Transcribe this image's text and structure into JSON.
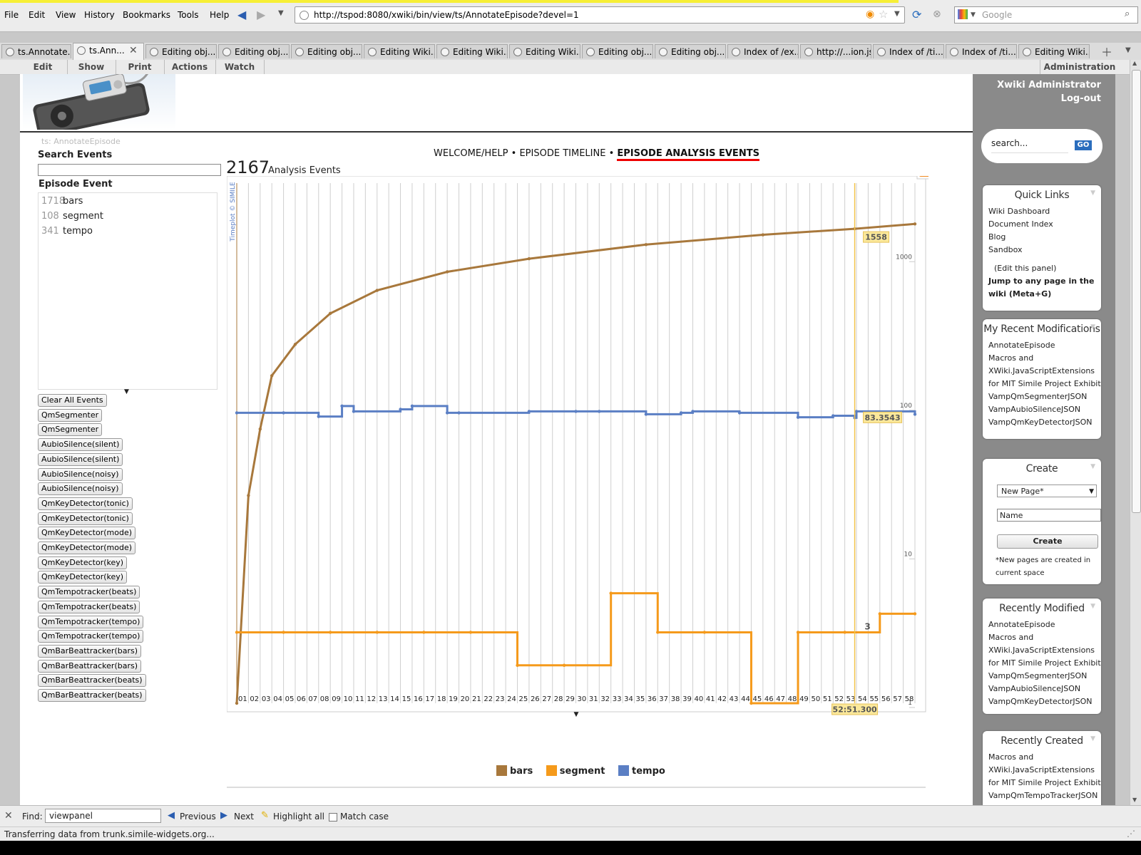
{
  "menubar": {
    "items": [
      "File",
      "Edit",
      "View",
      "History",
      "Bookmarks",
      "Tools",
      "Help"
    ],
    "url": "http://tspod:8080/xwiki/bin/view/ts/AnnotateEpisode?devel=1",
    "search_placeholder": "Google"
  },
  "tabs": [
    {
      "label": "ts.Annotate..."
    },
    {
      "label": "ts.Ann..."
    },
    {
      "label": "Editing obj..."
    },
    {
      "label": "Editing obj..."
    },
    {
      "label": "Editing obj..."
    },
    {
      "label": "Editing Wiki..."
    },
    {
      "label": "Editing Wiki..."
    },
    {
      "label": "Editing Wiki..."
    },
    {
      "label": "Editing obj..."
    },
    {
      "label": "Editing obj..."
    },
    {
      "label": "Index of /ex..."
    },
    {
      "label": "http://...ion.js"
    },
    {
      "label": "Index of /ti..."
    },
    {
      "label": "Index of /ti..."
    },
    {
      "label": "Editing Wiki..."
    }
  ],
  "xwiki_menu": {
    "items": [
      "Edit",
      "Show",
      "Print",
      "Actions",
      "Watch"
    ],
    "admin": "Administration"
  },
  "breadcrumb": "ts: AnnotateEpisode",
  "search_events": {
    "label": "Search Events",
    "value": ""
  },
  "episode_event": {
    "label": "Episode Event",
    "items": [
      {
        "count": "1718",
        "name": "bars"
      },
      {
        "count": "108",
        "name": "segment"
      },
      {
        "count": "341",
        "name": "tempo"
      }
    ]
  },
  "buttons": [
    "Clear All Events",
    "QmSegmenter",
    "QmSegmenter",
    "AubioSilence(silent)",
    "AubioSilence(silent)",
    "AubioSilence(noisy)",
    "AubioSilence(noisy)",
    "QmKeyDetector(tonic)",
    "QmKeyDetector(tonic)",
    "QmKeyDetector(mode)",
    "QmKeyDetector(mode)",
    "QmKeyDetector(key)",
    "QmKeyDetector(key)",
    "QmTempotracker(beats)",
    "QmTempotracker(beats)",
    "QmTempotracker(tempo)",
    "QmTempotracker(tempo)",
    "QmBarBeattracker(bars)",
    "QmBarBeattracker(bars)",
    "QmBarBeattracker(beats)",
    "QmBarBeattracker(beats)"
  ],
  "nav": {
    "welcome": "WELCOME/HELP",
    "timeline": "EPISODE TIMELINE",
    "analysis": "EPISODE ANALYSIS EVENTS",
    "sep": "•"
  },
  "summary": {
    "count": "2167",
    "label": "Analysis Events"
  },
  "plot": {
    "credit": "Timeplot © SIMILE",
    "hover_bars": "1558",
    "hover_tempo": "83.3543",
    "hover_segment": "3",
    "hover_time": "52:51.300",
    "colors": {
      "bars": "#a8783c",
      "segment": "#f59a1b",
      "tempo": "#5b7fc4"
    }
  },
  "chart_data": {
    "type": "line",
    "x_ticks": [
      "01",
      "02",
      "03",
      "04",
      "05",
      "06",
      "07",
      "08",
      "09",
      "10",
      "11",
      "12",
      "13",
      "14",
      "15",
      "16",
      "17",
      "18",
      "19",
      "20",
      "21",
      "22",
      "23",
      "24",
      "25",
      "26",
      "27",
      "28",
      "29",
      "30",
      "31",
      "32",
      "33",
      "34",
      "35",
      "36",
      "37",
      "38",
      "39",
      "40",
      "41",
      "42",
      "43",
      "44",
      "45",
      "46",
      "47",
      "48",
      "49",
      "50",
      "51",
      "52",
      "53",
      "54",
      "55",
      "56",
      "57",
      "58"
    ],
    "y_ticks": [
      "1000",
      "100",
      "10",
      "1"
    ],
    "yscale": "log",
    "series": [
      {
        "name": "bars",
        "x": [
          0,
          1,
          2,
          3,
          5,
          8,
          12,
          18,
          25,
          35,
          45,
          52.85,
          58
        ],
        "y": [
          1,
          25,
          70,
          160,
          260,
          420,
          600,
          800,
          980,
          1220,
          1420,
          1558,
          1680
        ]
      },
      {
        "name": "segment",
        "x": [
          0,
          4,
          8,
          12,
          16,
          20,
          24,
          28,
          32,
          36,
          40,
          44,
          48,
          52,
          55,
          58
        ],
        "y": [
          3,
          3,
          3,
          3,
          3,
          3,
          1.8,
          1.8,
          5.5,
          3,
          3,
          1,
          3,
          3,
          4,
          4
        ]
      },
      {
        "name": "tempo",
        "x": [
          0,
          4,
          7,
          9,
          10,
          14,
          15,
          18,
          19,
          25,
          29,
          31,
          35,
          38,
          39,
          43,
          48,
          51,
          52.85,
          53,
          58
        ],
        "y": [
          90,
          90,
          85,
          100,
          92,
          95,
          100,
          90,
          90,
          92,
          92,
          92,
          88,
          90,
          92,
          90,
          84,
          86,
          83.3543,
          92,
          88
        ]
      }
    ]
  },
  "legend": [
    {
      "name": "bars",
      "color": "#a8783c"
    },
    {
      "name": "segment",
      "color": "#f59a1b"
    },
    {
      "name": "tempo",
      "color": "#5b7fc4"
    }
  ],
  "sidebar": {
    "user": "Xwiki Administrator",
    "logout": "Log-out",
    "search_placeholder": "search...",
    "go": "GO",
    "quick_links": {
      "title": "Quick Links",
      "items": [
        "Wiki Dashboard",
        "Document Index",
        "Blog",
        "Sandbox"
      ],
      "edit": "(Edit this panel)",
      "jump": "Jump to any page in the wiki (Meta+G)"
    },
    "recent_mods": {
      "title": "My Recent Modifications",
      "items": [
        "AnnotateEpisode",
        "Macros and",
        "XWiki.JavaScriptExtensions",
        "for MIT Simile Project Exhibit",
        "VampQmSegmenterJSON",
        "VampAubioSilenceJSON",
        "VampQmKeyDetectorJSON"
      ]
    },
    "create": {
      "title": "Create",
      "select": "New Page*",
      "name_value": "Name",
      "button": "Create",
      "note": "*New pages are created in current space"
    },
    "recently_modified": {
      "title": "Recently Modified",
      "items": [
        "AnnotateEpisode",
        "Macros and",
        "XWiki.JavaScriptExtensions",
        "for MIT Simile Project Exhibit",
        "VampQmSegmenterJSON",
        "VampAubioSilenceJSON",
        "VampQmKeyDetectorJSON"
      ]
    },
    "recently_created": {
      "title": "Recently Created",
      "items": [
        "Macros and",
        "XWiki.JavaScriptExtensions",
        "for MIT Simile Project Exhibit",
        "VampQmTempoTrackerJSON"
      ]
    }
  },
  "findbar": {
    "label": "Find:",
    "value": "viewpanel",
    "previous": "Previous",
    "next": "Next",
    "highlight": "Highlight all",
    "match_case": "Match case"
  },
  "status": "Transferring data from trunk.simile-widgets.org..."
}
